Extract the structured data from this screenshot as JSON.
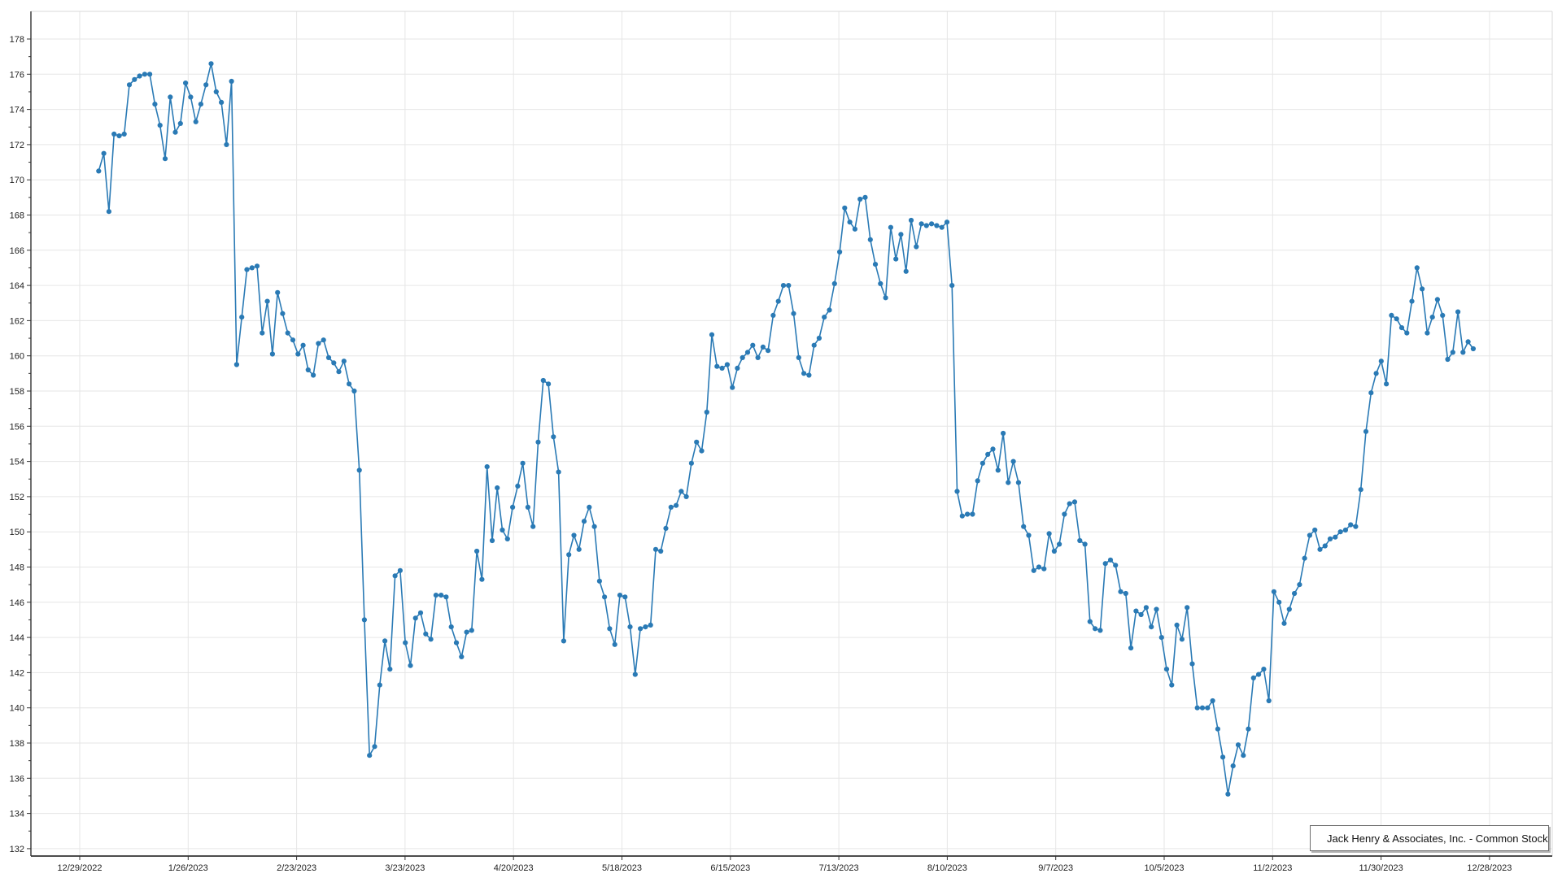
{
  "chart_data": {
    "type": "line",
    "title": "",
    "xlabel": "",
    "ylabel": "",
    "grid": true,
    "legend_position": "bottom-right",
    "marker": "circle",
    "x_tick_labels": [
      "12/29/2022",
      "1/26/2023",
      "2/23/2023",
      "3/23/2023",
      "4/20/2023",
      "5/18/2023",
      "6/15/2023",
      "7/13/2023",
      "8/10/2023",
      "9/7/2023",
      "10/5/2023",
      "11/2/2023",
      "11/30/2023",
      "12/28/2023"
    ],
    "y_ticks": [
      132,
      134,
      136,
      138,
      140,
      142,
      144,
      146,
      148,
      150,
      152,
      154,
      156,
      158,
      160,
      162,
      164,
      166,
      168,
      170,
      172,
      174,
      176,
      178
    ],
    "ylim": [
      131.5,
      179.6
    ],
    "series": [
      {
        "name": "Jack Henry & Associates, Inc. - Common Stock",
        "color": "#2a7ab5",
        "values": [
          170.5,
          171.5,
          168.2,
          172.6,
          172.5,
          172.6,
          175.4,
          175.7,
          175.9,
          176.0,
          176.0,
          174.3,
          173.1,
          171.2,
          174.7,
          172.7,
          173.2,
          175.5,
          174.7,
          173.3,
          174.3,
          175.4,
          176.6,
          175.0,
          174.4,
          172.0,
          175.6,
          159.5,
          162.2,
          164.9,
          165.0,
          165.1,
          161.3,
          163.1,
          160.1,
          163.6,
          162.4,
          161.3,
          160.9,
          160.1,
          160.6,
          159.2,
          158.9,
          160.7,
          160.9,
          159.9,
          159.6,
          159.1,
          159.7,
          158.4,
          158.0,
          153.5,
          145.0,
          137.3,
          137.8,
          141.3,
          143.8,
          142.2,
          147.5,
          147.8,
          143.7,
          142.4,
          145.1,
          145.4,
          144.2,
          143.9,
          146.4,
          146.4,
          146.3,
          144.6,
          143.7,
          142.9,
          144.3,
          144.4,
          148.9,
          147.3,
          153.7,
          149.5,
          152.5,
          150.1,
          149.6,
          151.4,
          152.6,
          153.9,
          151.4,
          150.3,
          155.1,
          158.6,
          158.4,
          155.4,
          153.4,
          143.8,
          148.7,
          149.8,
          149.0,
          150.6,
          151.4,
          150.3,
          147.2,
          146.3,
          144.5,
          143.6,
          146.4,
          146.3,
          144.6,
          141.9,
          144.5,
          144.6,
          144.7,
          149.0,
          148.9,
          150.2,
          151.4,
          151.5,
          152.3,
          152.0,
          153.9,
          155.1,
          154.6,
          156.8,
          161.2,
          159.4,
          159.3,
          159.5,
          158.2,
          159.3,
          159.9,
          160.2,
          160.6,
          159.9,
          160.5,
          160.3,
          162.3,
          163.1,
          164.0,
          164.0,
          162.4,
          159.9,
          159.0,
          158.9,
          160.6,
          161.0,
          162.2,
          162.6,
          164.1,
          165.9,
          168.4,
          167.6,
          167.2,
          168.9,
          169.0,
          166.6,
          165.2,
          164.1,
          163.3,
          167.3,
          165.5,
          166.9,
          164.8,
          167.7,
          166.2,
          167.5,
          167.4,
          167.5,
          167.4,
          167.3,
          167.6,
          164.0,
          152.3,
          150.9,
          151.0,
          151.0,
          152.9,
          153.9,
          154.4,
          154.7,
          153.5,
          155.6,
          152.8,
          154.0,
          152.8,
          150.3,
          149.8,
          147.8,
          148.0,
          147.9,
          149.9,
          148.9,
          149.3,
          151.0,
          151.6,
          151.7,
          149.5,
          149.3,
          144.9,
          144.5,
          144.4,
          148.2,
          148.4,
          148.1,
          146.6,
          146.5,
          143.4,
          145.5,
          145.3,
          145.7,
          144.6,
          145.6,
          144.0,
          142.2,
          141.3,
          144.7,
          143.9,
          145.7,
          142.5,
          140.0,
          140.0,
          140.0,
          140.4,
          138.8,
          137.2,
          135.1,
          136.7,
          137.9,
          137.3,
          138.8,
          141.7,
          141.9,
          142.2,
          140.4,
          146.6,
          146.0,
          144.8,
          145.6,
          146.5,
          147.0,
          148.5,
          149.8,
          150.1,
          149.0,
          149.2,
          149.6,
          149.7,
          150.0,
          150.1,
          150.4,
          150.3,
          152.4,
          155.7,
          157.9,
          159.0,
          159.7,
          158.4,
          162.3,
          162.1,
          161.6,
          161.3,
          163.1,
          165.0,
          163.8,
          161.3,
          162.2,
          163.2,
          162.3,
          159.8,
          160.2,
          162.5,
          160.2,
          160.8,
          160.4
        ]
      }
    ]
  },
  "legend": {
    "label": "Jack Henry & Associates, Inc. - Common Stock"
  },
  "colors": {
    "line": "#2a7ab5",
    "grid": "#e6e6e6",
    "axis": "#333333",
    "frame": "#d9d9d9",
    "text": "#222222",
    "background": "#ffffff"
  }
}
